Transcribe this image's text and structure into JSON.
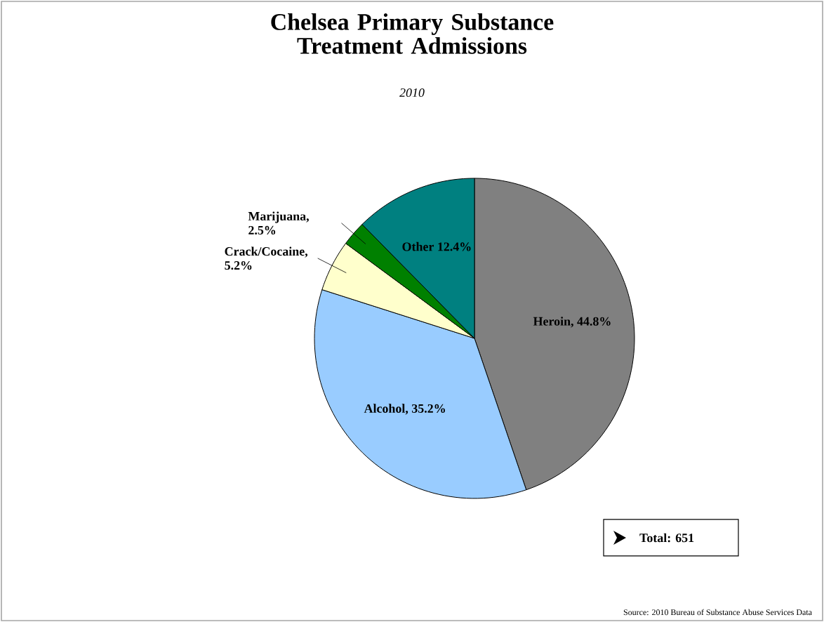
{
  "chart_data": {
    "type": "pie",
    "title": "Chelsea Primary Substance Treatment Admissions",
    "subtitle": "2010",
    "categories": [
      "Heroin, 44.8%",
      "Alcohol, 35.2%",
      "Crack/Cocaine, 5.2%",
      "Marijuana, 2.5%",
      "Other 12.4%"
    ],
    "values": [
      44.8,
      35.2,
      5.2,
      2.5,
      12.4
    ],
    "colors": [
      "#808080",
      "#99ccff",
      "#ffffcc",
      "#008000",
      "#008080"
    ],
    "annotations": [
      "Total: 651",
      "Source: 2010 Bureau of Substance Abuse Services Data"
    ]
  }
}
